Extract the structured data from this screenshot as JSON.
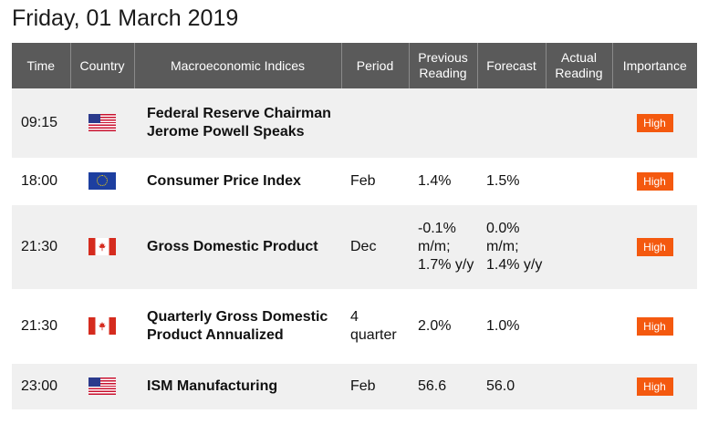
{
  "page": {
    "title": "Friday, 01 March 2019"
  },
  "headers": {
    "time": "Time",
    "country": "Country",
    "indices": "Macroeconomic Indices",
    "period": "Period",
    "previous": "Previous Reading",
    "forecast": "Forecast",
    "actual": "Actual Reading",
    "importance": "Importance"
  },
  "rows": [
    {
      "time": "09:15",
      "flag": "us-flag-icon",
      "indicator": "Federal Reserve Chairman Jerome Powell Speaks",
      "period": "",
      "previous": "",
      "forecast": "",
      "actual": "",
      "importance": "High"
    },
    {
      "time": "18:00",
      "flag": "eu-flag-icon",
      "indicator": "Consumer Price Index",
      "period": "Feb",
      "previous": "1.4%",
      "forecast": "1.5%",
      "actual": "",
      "importance": "High"
    },
    {
      "time": "21:30",
      "flag": "canada-flag-icon",
      "indicator": "Gross Domestic Product",
      "period": "Dec",
      "previous": "-0.1% m/m; 1.7% y/y",
      "forecast": "0.0% m/m; 1.4% y/y",
      "actual": "",
      "importance": "High"
    },
    {
      "time": "21:30",
      "flag": "canada-flag-icon",
      "indicator": "Quarterly Gross Domestic Product Annualized",
      "period": "4 quarter",
      "previous": "2.0%",
      "forecast": "1.0%",
      "actual": "",
      "importance": "High"
    },
    {
      "time": "23:00",
      "flag": "us-flag-icon",
      "indicator": "ISM Manufacturing",
      "period": "Feb",
      "previous": "56.6",
      "forecast": "56.0",
      "actual": "",
      "importance": "High"
    }
  ],
  "colors": {
    "header_bg": "#5a5a5a",
    "stripe": "#f0f0f0",
    "badge": "#f4590f"
  }
}
